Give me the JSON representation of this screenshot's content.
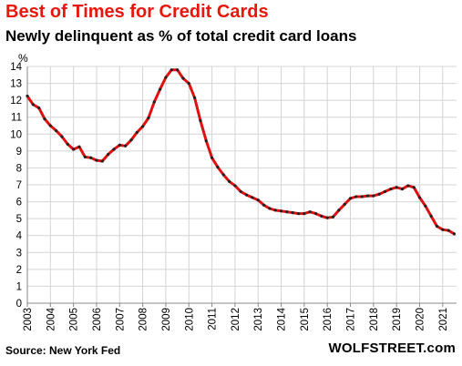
{
  "chart_data": {
    "type": "line",
    "title": "Best of Times for Credit Cards",
    "subtitle": "Newly delinquent as % of total credit card loans",
    "ylabel": "%",
    "xlabel": "",
    "ylim": [
      0,
      14
    ],
    "y_ticks": [
      "0",
      "1",
      "2",
      "3",
      "4",
      "5",
      "6",
      "7",
      "8",
      "9",
      "10",
      "11",
      "12",
      "13",
      "14"
    ],
    "x_ticks": [
      "2003",
      "2004",
      "2005",
      "2006",
      "2007",
      "2008",
      "2009",
      "2010",
      "2011",
      "2012",
      "2013",
      "2014",
      "2015",
      "2016",
      "2017",
      "2018",
      "2019",
      "2020",
      "2021"
    ],
    "grid": true,
    "series": [
      {
        "color": "#e01010",
        "marker_color": "#222222",
        "x": [
          2003.0,
          2003.25,
          2003.5,
          2003.75,
          2004.0,
          2004.25,
          2004.5,
          2004.75,
          2005.0,
          2005.25,
          2005.5,
          2005.75,
          2006.0,
          2006.25,
          2006.5,
          2006.75,
          2007.0,
          2007.25,
          2007.5,
          2007.75,
          2008.0,
          2008.25,
          2008.5,
          2008.75,
          2009.0,
          2009.25,
          2009.5,
          2009.75,
          2010.0,
          2010.25,
          2010.5,
          2010.75,
          2011.0,
          2011.25,
          2011.5,
          2011.75,
          2012.0,
          2012.25,
          2012.5,
          2012.75,
          2013.0,
          2013.25,
          2013.5,
          2013.75,
          2014.0,
          2014.25,
          2014.5,
          2014.75,
          2015.0,
          2015.25,
          2015.5,
          2015.75,
          2016.0,
          2016.25,
          2016.5,
          2016.75,
          2017.0,
          2017.25,
          2017.5,
          2017.75,
          2018.0,
          2018.25,
          2018.5,
          2018.75,
          2019.0,
          2019.25,
          2019.5,
          2019.75,
          2020.0,
          2020.25,
          2020.5,
          2020.75,
          2021.0,
          2021.25,
          2021.5
        ],
        "values": [
          12.25,
          11.75,
          11.55,
          10.9,
          10.5,
          10.2,
          9.85,
          9.4,
          9.1,
          9.25,
          8.65,
          8.6,
          8.45,
          8.4,
          8.8,
          9.1,
          9.35,
          9.3,
          9.65,
          10.1,
          10.45,
          10.95,
          11.9,
          12.65,
          13.35,
          13.8,
          13.8,
          13.3,
          13.0,
          12.15,
          10.8,
          9.6,
          8.6,
          8.05,
          7.6,
          7.2,
          6.95,
          6.6,
          6.4,
          6.25,
          6.1,
          5.8,
          5.6,
          5.5,
          5.45,
          5.4,
          5.35,
          5.3,
          5.3,
          5.4,
          5.3,
          5.15,
          5.05,
          5.1,
          5.5,
          5.85,
          6.2,
          6.3,
          6.3,
          6.35,
          6.35,
          6.45,
          6.6,
          6.75,
          6.85,
          6.75,
          6.95,
          6.85,
          6.25,
          5.75,
          5.15,
          4.55,
          4.35,
          4.3,
          4.1
        ]
      }
    ]
  },
  "footer": {
    "source": "Source: New York Fed",
    "brand": "WOLFSTREET.com"
  }
}
